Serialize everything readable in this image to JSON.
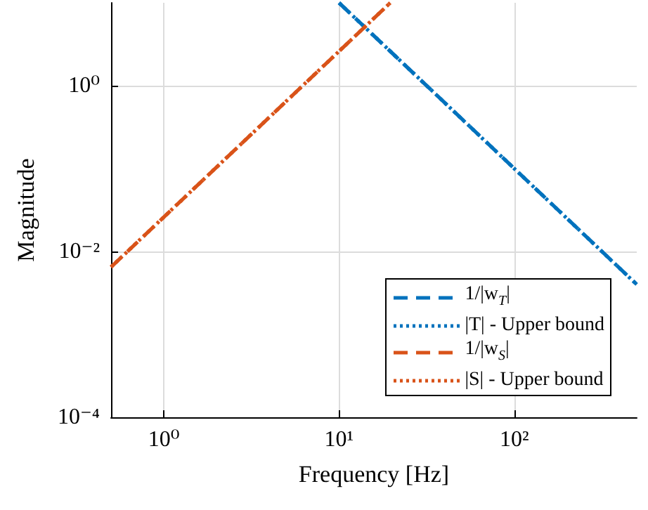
{
  "chart_data": {
    "type": "line",
    "xlabel": "Frequency [Hz]",
    "ylabel": "Magnitude",
    "log": "xy",
    "grid": true,
    "legend": "bottom right",
    "marker": "none",
    "xlim": [
      0.5,
      500
    ],
    "xticks": [
      {
        "value": 1,
        "label": "10⁰"
      },
      {
        "value": 10,
        "label": "10¹"
      },
      {
        "value": 100,
        "label": "10²"
      }
    ],
    "ylim": [
      0.0001,
      10
    ],
    "yticks": [
      {
        "value": 0.0001,
        "label": "10⁻⁴"
      },
      {
        "value": 0.01,
        "label": "10⁻²"
      },
      {
        "value": 1,
        "label": "10⁰"
      }
    ],
    "series": [
      {
        "name": "1/|w$_{T}$|",
        "color": "#0072bd",
        "line_style": "dashed",
        "x": [
          10,
          100,
          500
        ],
        "values": [
          10,
          0.1,
          0.004
        ]
      },
      {
        "name": "|T| - Upper bound",
        "color": "#0072bd",
        "line_style": "dotted",
        "x": [
          10,
          100,
          500
        ],
        "values": [
          10,
          0.1,
          0.004
        ]
      },
      {
        "name": "1/|w$_{S}$|",
        "color": "#d95319",
        "line_style": "dashed",
        "x": [
          0.5,
          1,
          10,
          19.6
        ],
        "values": [
          0.0065,
          0.026,
          2.6,
          10
        ]
      },
      {
        "name": "|S| - Upper bound",
        "color": "#d95319",
        "line_style": "dotted",
        "x": [
          0.5,
          1,
          10,
          19.6
        ],
        "values": [
          0.0065,
          0.026,
          2.6,
          10
        ]
      }
    ]
  }
}
